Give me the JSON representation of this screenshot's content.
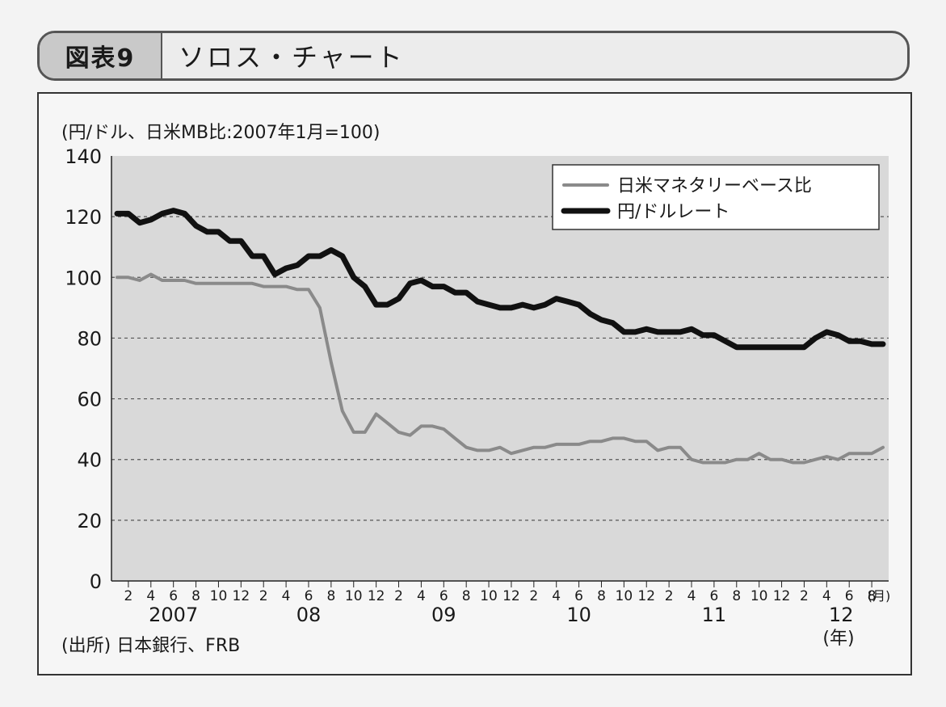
{
  "header": {
    "figure_label": "図表9",
    "title": "ソロス・チャート"
  },
  "footer": {
    "source": "(出所) 日本銀行、FRB"
  },
  "chart_data": {
    "type": "line",
    "title": "ソロス・チャート",
    "ylabel": "(円/ドル、日米MB比:2007年1月=100)",
    "ylim": [
      0,
      140
    ],
    "y_ticks": [
      0,
      20,
      40,
      60,
      80,
      100,
      120,
      140
    ],
    "grid": "horizontal dashed",
    "legend_position": "top-right",
    "x_unit_month": "(月)",
    "x_unit_year": "(年)",
    "x_month_ticks": [
      "2",
      "4",
      "6",
      "8",
      "10",
      "12",
      "2",
      "4",
      "6",
      "8",
      "10",
      "12",
      "2",
      "4",
      "6",
      "8",
      "10",
      "12",
      "2",
      "4",
      "6",
      "8",
      "10",
      "12",
      "2",
      "4",
      "6",
      "8",
      "10",
      "12",
      "2",
      "4",
      "6",
      "8"
    ],
    "x_year_labels": [
      "2007",
      "08",
      "09",
      "10",
      "11",
      "12"
    ],
    "x": [
      "2007-01",
      "2007-02",
      "2007-03",
      "2007-04",
      "2007-05",
      "2007-06",
      "2007-07",
      "2007-08",
      "2007-09",
      "2007-10",
      "2007-11",
      "2007-12",
      "2008-01",
      "2008-02",
      "2008-03",
      "2008-04",
      "2008-05",
      "2008-06",
      "2008-07",
      "2008-08",
      "2008-09",
      "2008-10",
      "2008-11",
      "2008-12",
      "2009-01",
      "2009-02",
      "2009-03",
      "2009-04",
      "2009-05",
      "2009-06",
      "2009-07",
      "2009-08",
      "2009-09",
      "2009-10",
      "2009-11",
      "2009-12",
      "2010-01",
      "2010-02",
      "2010-03",
      "2010-04",
      "2010-05",
      "2010-06",
      "2010-07",
      "2010-08",
      "2010-09",
      "2010-10",
      "2010-11",
      "2010-12",
      "2011-01",
      "2011-02",
      "2011-03",
      "2011-04",
      "2011-05",
      "2011-06",
      "2011-07",
      "2011-08",
      "2011-09",
      "2011-10",
      "2011-11",
      "2011-12",
      "2012-01",
      "2012-02",
      "2012-03",
      "2012-04",
      "2012-05",
      "2012-06",
      "2012-07",
      "2012-08",
      "2012-09"
    ],
    "series": [
      {
        "name": "日米マネタリーベース比",
        "color": "#8a8a8a",
        "values": [
          100,
          100,
          99,
          101,
          99,
          99,
          99,
          98,
          98,
          98,
          98,
          98,
          98,
          97,
          97,
          97,
          96,
          96,
          90,
          72,
          56,
          49,
          49,
          55,
          52,
          49,
          48,
          51,
          51,
          50,
          47,
          44,
          43,
          43,
          44,
          42,
          43,
          44,
          44,
          45,
          45,
          45,
          46,
          46,
          47,
          47,
          46,
          46,
          43,
          44,
          44,
          40,
          39,
          39,
          39,
          40,
          40,
          42,
          40,
          40,
          39,
          39,
          40,
          41,
          40,
          42,
          42,
          42,
          44
        ]
      },
      {
        "name": "円/ドルレート",
        "color": "#111111",
        "values": [
          121,
          121,
          118,
          119,
          121,
          122,
          121,
          117,
          115,
          115,
          112,
          112,
          107,
          107,
          101,
          103,
          104,
          107,
          107,
          109,
          107,
          100,
          97,
          91,
          91,
          93,
          98,
          99,
          97,
          97,
          95,
          95,
          92,
          91,
          90,
          90,
          91,
          90,
          91,
          93,
          92,
          91,
          88,
          86,
          85,
          82,
          82,
          83,
          82,
          82,
          82,
          83,
          81,
          81,
          79,
          77,
          77,
          77,
          77,
          77,
          77,
          77,
          80,
          82,
          81,
          79,
          79,
          78,
          78
        ]
      }
    ]
  }
}
